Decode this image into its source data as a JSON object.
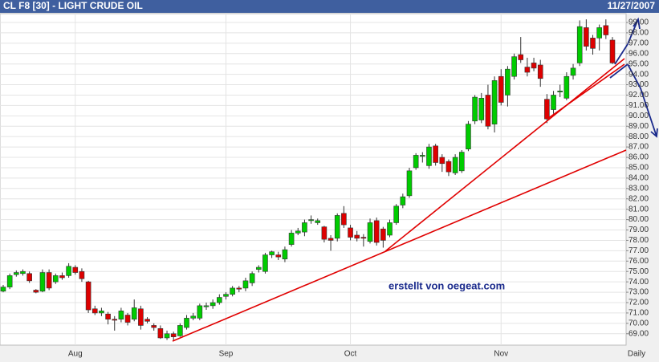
{
  "chart_data": {
    "type": "candlestick",
    "title": "CL F8 [30] - LIGHT CRUDE OIL",
    "date": "11/27/2007",
    "period_label": "Daily",
    "annotation": "erstellt von oegeat.com",
    "categories": [
      null,
      null,
      null,
      null,
      null,
      null,
      null,
      null,
      null,
      null,
      null,
      "Aug",
      null,
      null,
      null,
      null,
      null,
      null,
      null,
      null,
      null,
      null,
      null,
      null,
      null,
      null,
      null,
      null,
      null,
      null,
      null,
      null,
      null,
      null,
      "Sep",
      null,
      null,
      null,
      null,
      null,
      null,
      null,
      null,
      null,
      null,
      null,
      null,
      null,
      null,
      null,
      null,
      null,
      null,
      "Oct",
      null,
      null,
      null,
      null,
      null,
      null,
      null,
      null,
      null,
      null,
      null,
      null,
      null,
      null,
      null,
      null,
      null,
      null,
      null,
      null,
      null,
      null,
      "Nov",
      null,
      null,
      null,
      null,
      null,
      null,
      null,
      null,
      null,
      null,
      null,
      null,
      null,
      null,
      null,
      null,
      null
    ],
    "open": [
      73.1,
      73.5,
      74.7,
      74.8,
      74.8,
      73.2,
      73.1,
      74.9,
      74.0,
      74.6,
      74.6,
      75.4,
      75.0,
      74.0,
      71.4,
      71.0,
      70.9,
      70.4,
      70.4,
      70.8,
      70.4,
      71.4,
      70.4,
      69.8,
      69.5,
      68.6,
      69.0,
      68.8,
      69.6,
      70.5,
      70.5,
      71.6,
      71.7,
      72.0,
      72.6,
      72.8,
      73.4,
      73.4,
      73.9,
      75.2,
      75.0,
      76.6,
      76.6,
      76.2,
      77.6,
      78.7,
      78.8,
      79.9,
      79.7,
      79.3,
      78.2,
      78.2,
      80.6,
      79.2,
      78.5,
      78.3,
      77.9,
      79.9,
      79.1,
      78.5,
      79.7,
      81.4,
      82.3,
      85.0,
      86.1,
      85.2,
      87.1,
      86.0,
      85.6,
      84.5,
      84.7,
      86.8,
      89.5,
      89.6,
      92.0,
      89.2,
      93.8,
      92.0,
      93.8,
      95.9,
      94.7,
      95.1,
      94.9,
      91.6,
      90.6,
      92.3,
      91.7,
      93.9,
      95.1,
      98.5,
      97.5,
      97.5,
      98.7,
      97.3
    ],
    "high": [
      73.7,
      74.8,
      75.1,
      75.2,
      75.0,
      73.3,
      75.2,
      75.2,
      74.8,
      74.9,
      75.8,
      75.6,
      75.3,
      74.1,
      71.7,
      71.5,
      71.1,
      70.7,
      71.5,
      71.0,
      72.3,
      71.7,
      70.6,
      70.0,
      69.8,
      69.3,
      69.2,
      70.0,
      70.8,
      71.0,
      71.9,
      72.0,
      72.3,
      72.8,
      73.0,
      73.6,
      73.6,
      74.4,
      75.0,
      75.6,
      76.8,
      77.0,
      76.9,
      77.4,
      79.0,
      79.2,
      80.0,
      80.4,
      80.1,
      79.4,
      78.5,
      80.6,
      81.3,
      79.5,
      78.9,
      78.6,
      80.1,
      80.2,
      79.3,
      80.0,
      81.5,
      82.5,
      85.0,
      86.4,
      86.5,
      87.3,
      87.3,
      86.3,
      85.8,
      86.3,
      86.7,
      89.5,
      92.0,
      92.2,
      93.0,
      93.8,
      94.5,
      94.8,
      96.0,
      97.6,
      95.6,
      95.6,
      95.4,
      92.1,
      92.4,
      93.0,
      94.2,
      95.0,
      99.2,
      99.3,
      97.8,
      98.8,
      99.3,
      97.6
    ],
    "low": [
      73.0,
      73.3,
      74.5,
      74.6,
      73.9,
      72.9,
      73.0,
      73.2,
      73.8,
      74.2,
      74.4,
      74.7,
      74.0,
      71.0,
      70.8,
      70.7,
      69.9,
      69.3,
      70.1,
      69.8,
      70.2,
      69.4,
      70.0,
      69.3,
      68.5,
      68.4,
      68.3,
      68.7,
      69.4,
      70.3,
      70.3,
      71.3,
      71.4,
      71.8,
      72.3,
      72.6,
      73.0,
      73.1,
      73.6,
      74.9,
      74.8,
      76.3,
      76.1,
      75.9,
      77.4,
      78.5,
      78.4,
      79.6,
      79.5,
      77.8,
      77.0,
      77.9,
      79.2,
      78.0,
      77.9,
      77.4,
      77.7,
      77.5,
      77.3,
      78.3,
      79.5,
      81.1,
      82.1,
      84.8,
      85.5,
      84.9,
      85.2,
      84.6,
      84.2,
      84.3,
      84.5,
      86.6,
      89.2,
      89.3,
      88.7,
      88.4,
      91.0,
      90.9,
      93.5,
      95.1,
      93.8,
      94.3,
      92.8,
      89.3,
      90.2,
      91.8,
      91.5,
      93.5,
      94.8,
      96.3,
      95.9,
      96.3,
      97.4,
      95.0
    ],
    "close": [
      73.5,
      74.6,
      74.9,
      75.0,
      74.1,
      73.0,
      74.9,
      73.4,
      74.6,
      74.4,
      75.5,
      74.9,
      74.3,
      71.3,
      71.0,
      71.2,
      70.4,
      70.3,
      71.2,
      70.1,
      71.5,
      69.8,
      70.2,
      69.6,
      68.6,
      69.0,
      68.7,
      69.8,
      70.5,
      70.7,
      71.7,
      71.7,
      72.0,
      72.5,
      72.8,
      73.4,
      73.3,
      74.1,
      74.8,
      75.4,
      76.6,
      76.9,
      76.4,
      77.1,
      78.7,
      78.9,
      79.7,
      80.0,
      79.9,
      78.1,
      78.0,
      80.4,
      79.5,
      78.3,
      78.2,
      78.2,
      79.7,
      77.8,
      78.0,
      79.7,
      81.3,
      82.2,
      84.7,
      86.2,
      86.2,
      87.0,
      85.5,
      85.4,
      84.6,
      86.0,
      86.5,
      89.2,
      91.8,
      91.7,
      89.0,
      93.4,
      91.3,
      94.5,
      95.7,
      95.4,
      94.2,
      94.6,
      93.6,
      89.7,
      92.0,
      92.4,
      93.8,
      94.6,
      98.6,
      96.7,
      96.5,
      98.5,
      97.8,
      95.1
    ],
    "up_color": "#00cc00",
    "down_color": "#dd0000",
    "ylim": [
      67.9,
      99.85
    ],
    "yticks": [
      {
        "value": 69,
        "label": "69.00"
      },
      {
        "value": 70,
        "label": "70.00"
      },
      {
        "value": 71,
        "label": "71.00"
      },
      {
        "value": 72,
        "label": "72.00"
      },
      {
        "value": 73,
        "label": "73.00"
      },
      {
        "value": 74,
        "label": "74.00"
      },
      {
        "value": 75,
        "label": "75.00"
      },
      {
        "value": 76,
        "label": "76.00"
      },
      {
        "value": 77,
        "label": "77.00"
      },
      {
        "value": 78,
        "label": "78.00"
      },
      {
        "value": 79,
        "label": "79.00"
      },
      {
        "value": 80,
        "label": "80.00"
      },
      {
        "value": 81,
        "label": "81.00"
      },
      {
        "value": 82,
        "label": "82.00"
      },
      {
        "value": 83,
        "label": "83.00"
      },
      {
        "value": 84,
        "label": "84.00"
      },
      {
        "value": 85,
        "label": "85.00"
      },
      {
        "value": 86,
        "label": "86.00"
      },
      {
        "value": 87,
        "label": "87.00"
      },
      {
        "value": 88,
        "label": "88.00"
      },
      {
        "value": 89,
        "label": "89.00"
      },
      {
        "value": 90,
        "label": "90.00"
      },
      {
        "value": 91,
        "label": "91.00"
      },
      {
        "value": 92,
        "label": "92.00"
      },
      {
        "value": 93,
        "label": "93.00"
      },
      {
        "value": 94,
        "label": "94.00"
      },
      {
        "value": 95,
        "label": "95.00"
      },
      {
        "value": 96,
        "label": "96.00"
      },
      {
        "value": 97,
        "label": "97.00"
      },
      {
        "value": 98,
        "label": "98.00"
      },
      {
        "value": 99,
        "label": "99.00"
      }
    ],
    "grid": true
  }
}
